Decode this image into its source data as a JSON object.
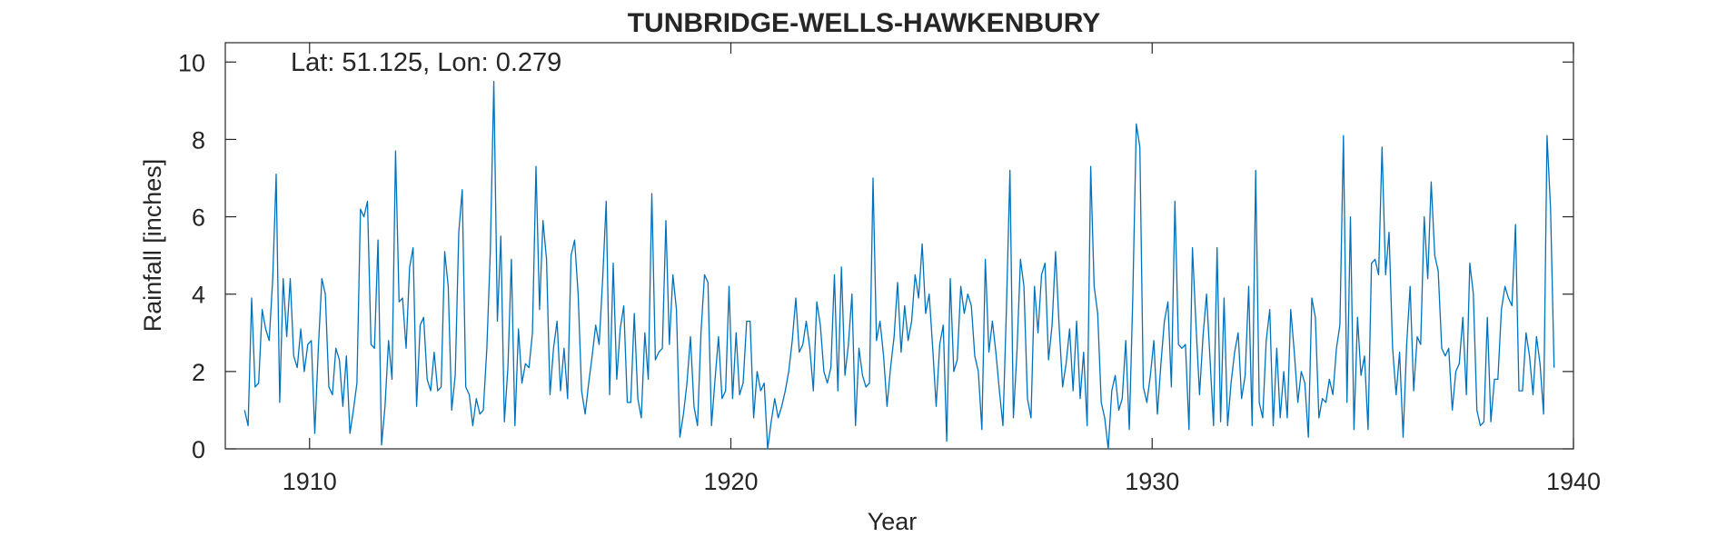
{
  "chart_data": {
    "type": "line",
    "title": "TUNBRIDGE-WELLS-HAWKENBURY",
    "xlabel": "Year",
    "ylabel": "Rainfall [inches]",
    "annotation": "Lat: 51.125, Lon: 0.279",
    "xlim": [
      1908,
      1940
    ],
    "ylim": [
      0,
      10.5
    ],
    "xticks": [
      1910,
      1920,
      1930,
      1940
    ],
    "yticks": [
      0,
      2,
      4,
      6,
      8,
      10
    ],
    "grid": false,
    "box": true,
    "colors": {
      "series": "#0072BD",
      "axes": "#262626"
    },
    "series": [
      {
        "x_start": 1908.458,
        "x_step": 0.08333,
        "values": [
          1.0,
          0.6,
          3.9,
          1.6,
          1.7,
          3.6,
          3.1,
          2.8,
          4.4,
          7.1,
          1.2,
          4.4,
          2.9,
          4.4,
          2.4,
          2.1,
          3.1,
          2.0,
          2.7,
          2.8,
          0.4,
          2.6,
          4.4,
          4.0,
          1.6,
          1.4,
          2.6,
          2.3,
          1.1,
          2.4,
          0.4,
          1.0,
          1.7,
          6.2,
          6.0,
          6.4,
          2.7,
          2.6,
          5.4,
          0.1,
          1.1,
          2.8,
          1.8,
          7.7,
          3.8,
          3.9,
          2.6,
          4.7,
          5.2,
          1.1,
          3.2,
          3.4,
          1.8,
          1.5,
          2.5,
          1.5,
          1.6,
          5.1,
          4.2,
          1.0,
          1.9,
          5.6,
          6.7,
          1.6,
          1.4,
          0.6,
          1.3,
          0.9,
          1.0,
          2.6,
          5.1,
          9.5,
          3.3,
          5.5,
          0.7,
          2.1,
          4.9,
          0.6,
          3.1,
          1.7,
          2.2,
          2.1,
          3.0,
          7.3,
          3.6,
          5.9,
          4.9,
          1.4,
          2.6,
          3.3,
          1.5,
          2.6,
          1.3,
          5.0,
          5.4,
          4.0,
          1.5,
          0.9,
          1.7,
          2.4,
          3.2,
          2.7,
          4.4,
          6.4,
          1.4,
          4.8,
          1.8,
          3.1,
          3.7,
          1.2,
          1.2,
          3.5,
          1.3,
          0.8,
          3.0,
          1.8,
          6.6,
          2.3,
          2.5,
          2.6,
          5.9,
          2.7,
          4.5,
          3.6,
          0.3,
          0.9,
          1.7,
          2.9,
          1.1,
          0.6,
          3.0,
          4.5,
          4.3,
          0.6,
          1.8,
          2.9,
          1.3,
          1.5,
          4.2,
          1.3,
          3.0,
          1.4,
          1.7,
          3.3,
          3.3,
          0.8,
          2.0,
          1.5,
          1.7,
          0.0,
          0.7,
          1.3,
          0.8,
          1.1,
          1.5,
          2.0,
          2.8,
          3.9,
          2.5,
          2.7,
          3.3,
          2.6,
          1.5,
          3.8,
          3.2,
          2.0,
          1.7,
          2.1,
          4.5,
          1.5,
          4.7,
          1.9,
          2.7,
          4.0,
          0.6,
          2.6,
          1.9,
          1.6,
          1.7,
          7.0,
          2.8,
          3.3,
          2.4,
          1.1,
          2.1,
          2.9,
          4.3,
          2.5,
          3.7,
          2.8,
          3.3,
          4.5,
          3.9,
          5.3,
          3.5,
          4.0,
          2.6,
          1.1,
          2.7,
          3.2,
          0.2,
          4.4,
          2.0,
          2.3,
          4.2,
          3.5,
          4.0,
          3.7,
          2.4,
          2.0,
          0.5,
          4.9,
          2.5,
          3.3,
          2.5,
          1.5,
          0.6,
          3.6,
          7.2,
          0.8,
          2.5,
          4.9,
          4.2,
          1.3,
          0.8,
          4.2,
          3.0,
          4.5,
          4.8,
          2.3,
          3.2,
          5.1,
          3.2,
          1.6,
          2.2,
          3.1,
          1.5,
          3.3,
          1.3,
          2.5,
          0.6,
          7.3,
          4.2,
          3.5,
          1.2,
          0.8,
          0.0,
          1.5,
          1.9,
          1.0,
          1.3,
          2.8,
          0.5,
          3.9,
          8.4,
          7.8,
          1.6,
          1.2,
          1.9,
          2.8,
          0.9,
          2.2,
          3.3,
          3.8,
          1.6,
          6.4,
          2.7,
          2.6,
          2.7,
          0.5,
          5.2,
          3.2,
          1.4,
          2.9,
          4.0,
          2.3,
          0.6,
          5.2,
          0.7,
          3.9,
          0.6,
          1.7,
          2.5,
          3.0,
          1.3,
          1.9,
          4.2,
          0.6,
          7.2,
          1.2,
          0.8,
          2.8,
          3.6,
          0.6,
          2.6,
          0.8,
          2.0,
          0.8,
          3.6,
          2.5,
          1.2,
          2.0,
          1.7,
          0.3,
          3.9,
          3.4,
          0.8,
          1.3,
          1.2,
          1.8,
          1.4,
          2.6,
          3.2,
          8.1,
          1.2,
          6.0,
          0.5,
          3.4,
          1.9,
          2.4,
          0.5,
          4.8,
          4.9,
          4.5,
          7.8,
          4.5,
          5.6,
          2.6,
          1.4,
          2.5,
          0.3,
          2.7,
          4.2,
          1.5,
          2.9,
          2.7,
          6.0,
          4.4,
          6.9,
          5.0,
          4.6,
          2.6,
          2.4,
          2.6,
          1.0,
          2.0,
          2.2,
          3.4,
          1.4,
          4.8,
          4.0,
          1.0,
          0.6,
          0.7,
          3.4,
          0.7,
          1.8,
          1.8,
          3.6,
          4.2,
          3.9,
          3.7,
          5.8,
          1.5,
          1.5,
          3.0,
          2.4,
          1.4,
          2.9,
          2.2,
          0.9,
          8.1,
          6.2,
          2.1
        ]
      }
    ]
  }
}
